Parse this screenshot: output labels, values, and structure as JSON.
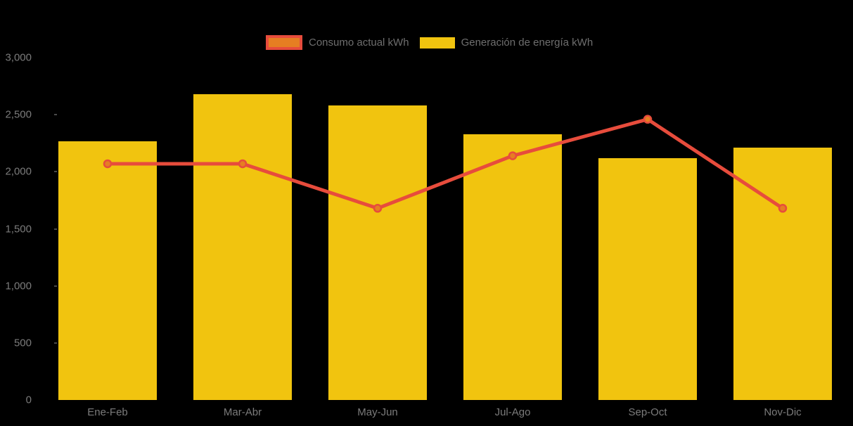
{
  "chart_data": {
    "type": "bar",
    "subtype": "combo-bar-line",
    "title": "",
    "xlabel": "",
    "ylabel": "",
    "categories": [
      "Ene-Feb",
      "Mar-Abr",
      "May-Jun",
      "Jul-Ago",
      "Sep-Oct",
      "Nov-Dic"
    ],
    "series": [
      {
        "name": "Consumo actual kWh",
        "type": "line",
        "color": "#e74c3c",
        "marker_fill": "#e67e22",
        "values": [
          2070,
          2070,
          1680,
          2140,
          2460,
          1680
        ]
      },
      {
        "name": "Generación de energía kWh",
        "type": "bar",
        "color": "#f1c40f",
        "values": [
          2270,
          2680,
          2580,
          2330,
          2120,
          2210
        ]
      }
    ],
    "ylim": [
      0,
      3000
    ],
    "ytick_interval": 500,
    "ytick_labels": [
      "0",
      "500",
      "1,000",
      "1,500",
      "2,000",
      "2,500",
      "3,000"
    ],
    "grid": false,
    "legend_position": "top",
    "colors": {
      "background": "#000000",
      "axis_text": "#7b7b7b",
      "legend_text": "#6e6e6e"
    }
  }
}
